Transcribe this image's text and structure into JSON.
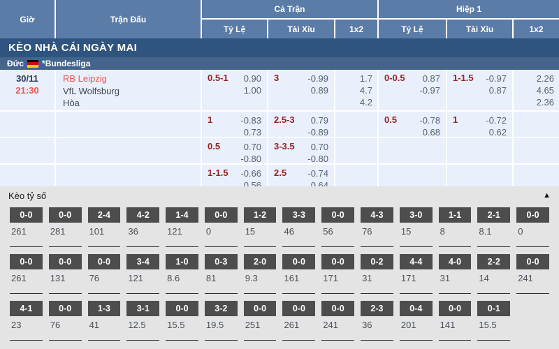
{
  "header": {
    "col_time": "Giờ",
    "col_match": "Trận Đấu",
    "group_full": "Cả Trận",
    "group_half": "Hiệp 1",
    "sub_handicap": "Tỷ Lệ",
    "sub_overunder": "Tài Xỉu",
    "sub_1x2": "1x2"
  },
  "banner": {
    "title": "KÈO NHÀ CÁI NGÀY MAI"
  },
  "league": {
    "country": "Đức",
    "flag": "germany-flag",
    "name": "*Bundesliga"
  },
  "match": {
    "date": "30/11",
    "time": "21:30",
    "home": "RB Leipzig",
    "away": "VfL Wolfsburg",
    "draw_label": "Hòa"
  },
  "odds_rows": [
    {
      "ft_hdp": {
        "line": "0.5-1",
        "over": "0.90",
        "under": "1.00"
      },
      "ft_ou": {
        "line": "3",
        "over": "-0.99",
        "under": "0.89"
      },
      "ft_1x2": [
        "1.7",
        "4.7",
        "4.2"
      ],
      "h1_hdp": {
        "line": "0-0.5",
        "over": "0.87",
        "under": "-0.97"
      },
      "h1_ou": {
        "line": "1-1.5",
        "over": "-0.97",
        "under": "0.87"
      },
      "h1_1x2": [
        "2.26",
        "4.65",
        "2.36"
      ]
    },
    {
      "ft_hdp": {
        "line": "1",
        "over": "-0.83",
        "under": "0.73"
      },
      "ft_ou": {
        "line": "2.5-3",
        "over": "0.79",
        "under": "-0.89"
      },
      "ft_1x2": [],
      "h1_hdp": {
        "line": "0.5",
        "over": "-0.78",
        "under": "0.68"
      },
      "h1_ou": {
        "line": "1",
        "over": "-0.72",
        "under": "0.62"
      },
      "h1_1x2": []
    },
    {
      "ft_hdp": {
        "line": "0.5",
        "over": "0.70",
        "under": "-0.80"
      },
      "ft_ou": {
        "line": "3-3.5",
        "over": "0.70",
        "under": "-0.80"
      },
      "ft_1x2": [],
      "h1_hdp": {},
      "h1_ou": {},
      "h1_1x2": []
    },
    {
      "ft_hdp": {
        "line": "1-1.5",
        "over": "-0.66",
        "under": "0.56"
      },
      "ft_ou": {
        "line": "2.5",
        "over": "-0.74",
        "under": "0.64"
      },
      "ft_1x2": [],
      "h1_hdp": {},
      "h1_ou": {},
      "h1_1x2": []
    }
  ],
  "score_section": {
    "title": "Kèo tỷ số",
    "collapse_icon": "▲",
    "rows": [
      [
        {
          "score": "0-0",
          "odds": "261"
        },
        {
          "score": "0-0",
          "odds": "281"
        },
        {
          "score": "2-4",
          "odds": "101"
        },
        {
          "score": "4-2",
          "odds": "36"
        },
        {
          "score": "1-4",
          "odds": "121"
        },
        {
          "score": "0-0",
          "odds": "0"
        },
        {
          "score": "1-2",
          "odds": "15"
        },
        {
          "score": "3-3",
          "odds": "46"
        },
        {
          "score": "0-0",
          "odds": "56"
        },
        {
          "score": "4-3",
          "odds": "76"
        },
        {
          "score": "3-0",
          "odds": "15"
        },
        {
          "score": "1-1",
          "odds": "8"
        },
        {
          "score": "2-1",
          "odds": "8.1"
        },
        {
          "score": "0-0",
          "odds": "0"
        }
      ],
      [
        {
          "score": "0-0",
          "odds": "261"
        },
        {
          "score": "0-0",
          "odds": "131"
        },
        {
          "score": "0-0",
          "odds": "76"
        },
        {
          "score": "3-4",
          "odds": "121"
        },
        {
          "score": "1-0",
          "odds": "8.6"
        },
        {
          "score": "0-3",
          "odds": "81"
        },
        {
          "score": "2-0",
          "odds": "9.3"
        },
        {
          "score": "0-0",
          "odds": "161"
        },
        {
          "score": "0-0",
          "odds": "171"
        },
        {
          "score": "0-2",
          "odds": "31"
        },
        {
          "score": "4-4",
          "odds": "171"
        },
        {
          "score": "4-0",
          "odds": "31"
        },
        {
          "score": "2-2",
          "odds": "14"
        },
        {
          "score": "0-0",
          "odds": "241"
        }
      ],
      [
        {
          "score": "4-1",
          "odds": "23"
        },
        {
          "score": "0-0",
          "odds": "76"
        },
        {
          "score": "1-3",
          "odds": "41"
        },
        {
          "score": "3-1",
          "odds": "12.5"
        },
        {
          "score": "0-0",
          "odds": "15.5"
        },
        {
          "score": "3-2",
          "odds": "19.5"
        },
        {
          "score": "0-0",
          "odds": "251"
        },
        {
          "score": "0-0",
          "odds": "261"
        },
        {
          "score": "0-0",
          "odds": "241"
        },
        {
          "score": "2-3",
          "odds": "36"
        },
        {
          "score": "0-4",
          "odds": "201"
        },
        {
          "score": "0-0",
          "odds": "141"
        },
        {
          "score": "0-1",
          "odds": "15.5"
        },
        null
      ]
    ]
  },
  "colors": {
    "header_bg": "#5b7ca7",
    "banner_bg": "#2f5480",
    "league_bg": "#45648c",
    "odds_bg": "#e9effb",
    "accent_red": "#f0534f",
    "handicap_red": "#9c2020",
    "score_box_bg": "#4d4d4d",
    "section_bg": "#e4e4e4"
  }
}
